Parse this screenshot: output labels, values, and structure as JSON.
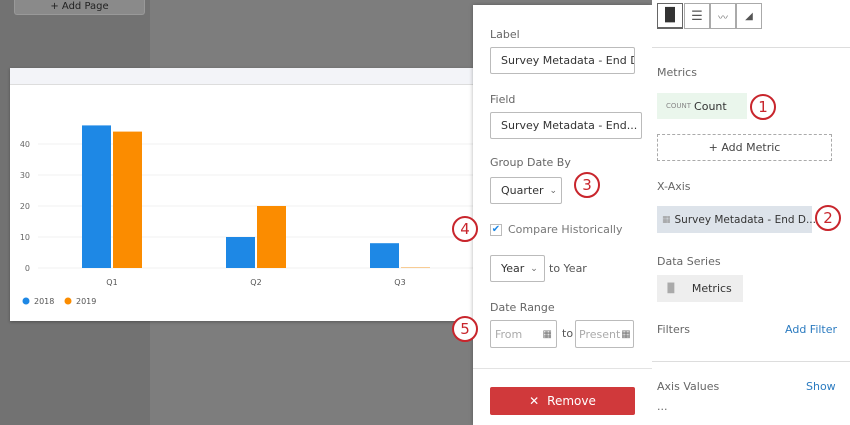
{
  "page": {
    "add_page": "+ Add Page"
  },
  "chart_data": {
    "type": "bar",
    "categories": [
      "Q1",
      "Q2",
      "Q3"
    ],
    "series": [
      {
        "name": "2018",
        "color": "#1e88e5",
        "values": [
          46,
          10,
          8
        ]
      },
      {
        "name": "2019",
        "color": "#fb8c00",
        "values": [
          44,
          20,
          0.3
        ]
      }
    ],
    "yticks": [
      0,
      10,
      20,
      30,
      40
    ],
    "ylim": [
      0,
      50
    ],
    "grid": true,
    "legend": "bottom-left"
  },
  "popover": {
    "label_title": "Label",
    "label_value": "Survey Metadata - End Da",
    "field_title": "Field",
    "field_value": "Survey Metadata - End...",
    "group_title": "Group Date By",
    "group_value": "Quarter",
    "compare_label": "Compare Historically",
    "compare_checked": true,
    "period_value": "Year",
    "to_year": "to Year",
    "range_title": "Date Range",
    "from_placeholder": "From",
    "to": "to",
    "present_placeholder": "Present",
    "remove": "Remove"
  },
  "callouts": [
    "1",
    "2",
    "3",
    "4",
    "5"
  ],
  "panel": {
    "metrics_title": "Metrics",
    "metric_tag": "COUNT",
    "metric_name": "Count",
    "add_metric": "+ Add Metric",
    "xaxis_title": "X-Axis",
    "xaxis_value": "Survey Metadata - End D...",
    "series_title": "Data Series",
    "series_value": "Metrics",
    "filters_title": "Filters",
    "add_filter": "Add Filter",
    "axis_values_title": "Axis Values",
    "show": "Show",
    "ellipsis": "..."
  },
  "colors": {
    "accent": "#2b7bc0",
    "danger": "#d0393b",
    "callout": "#c8252c"
  }
}
